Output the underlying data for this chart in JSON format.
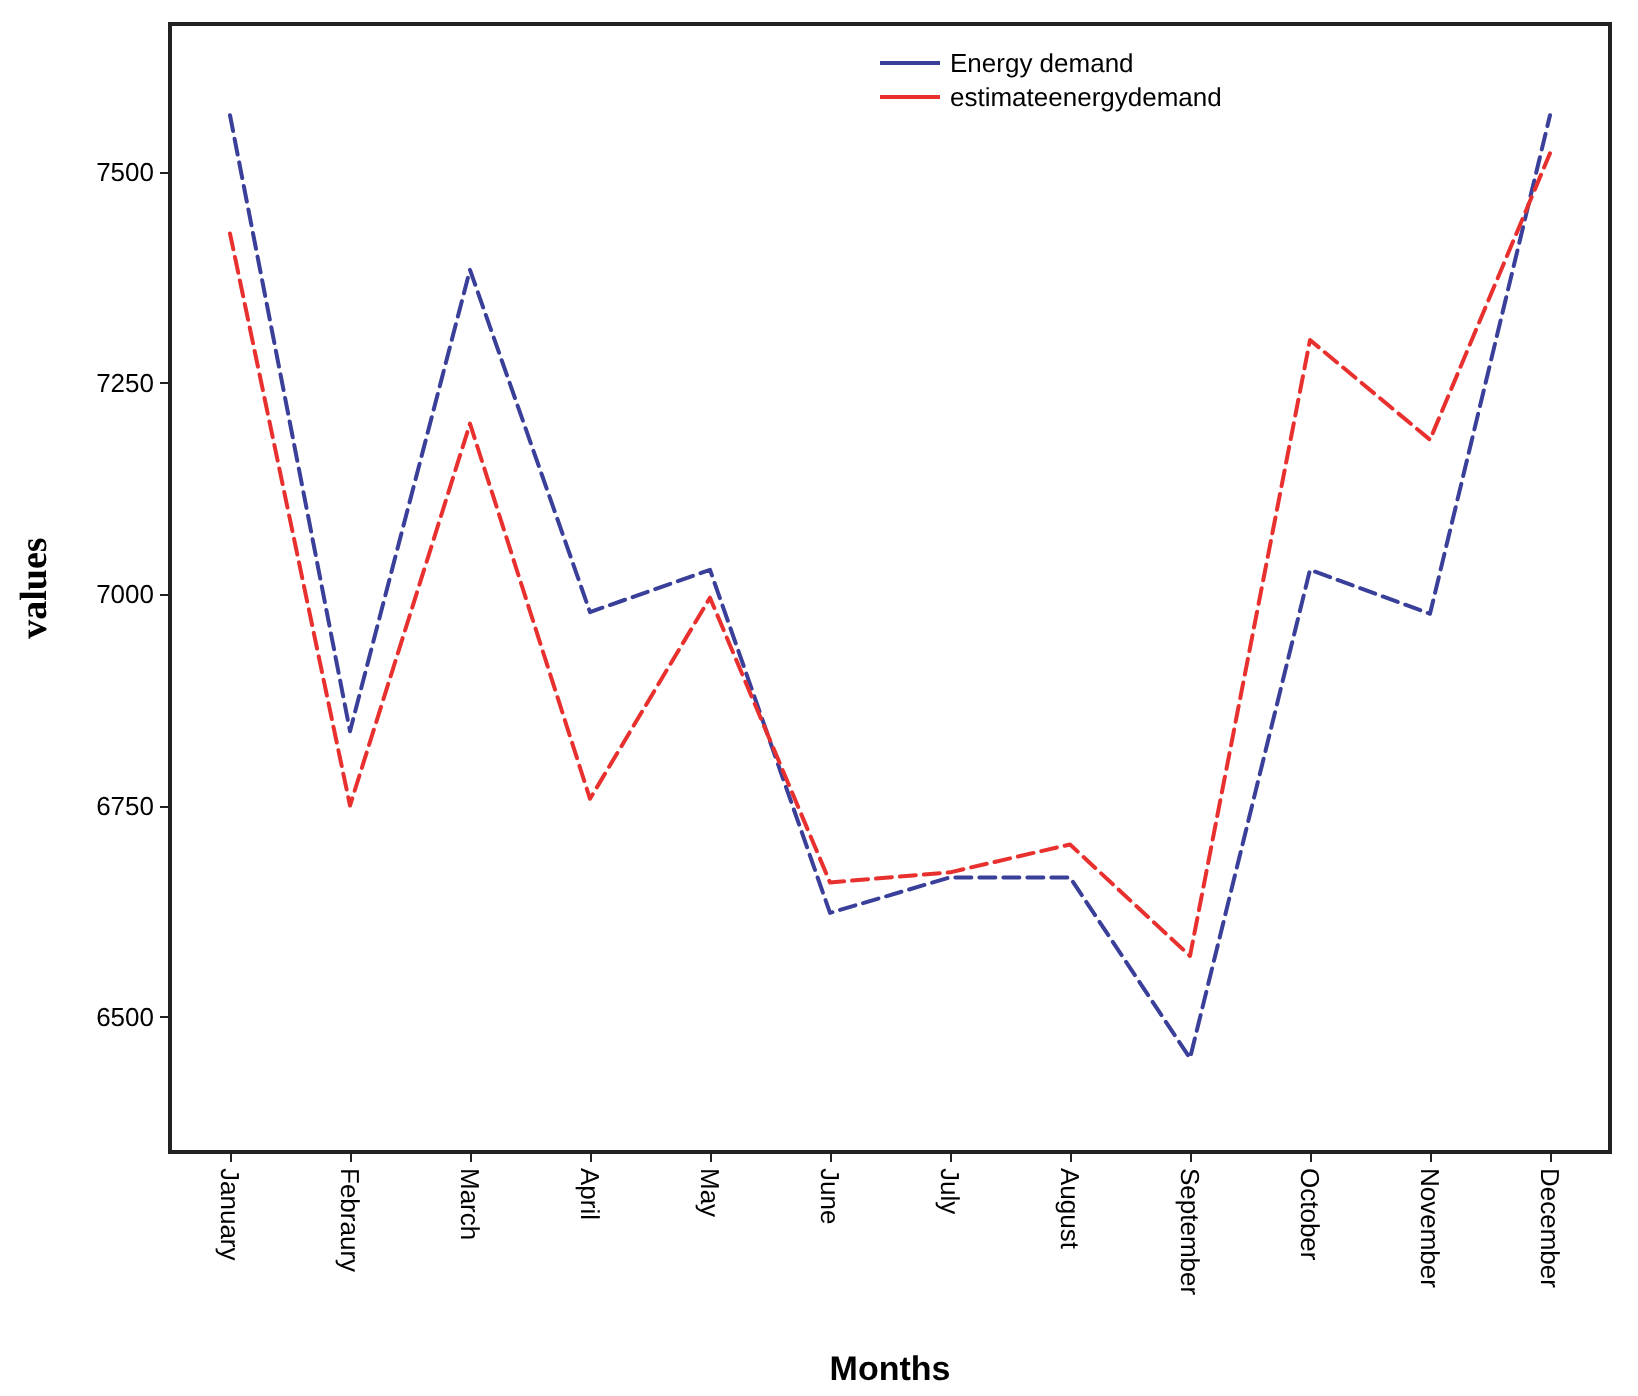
{
  "chart_data": {
    "type": "line",
    "xlabel": "Months",
    "ylabel": "values",
    "categories": [
      "January",
      "Febraury",
      "March",
      "April",
      "May",
      "June",
      "July",
      "August",
      "September",
      "October",
      "November",
      "December"
    ],
    "series": [
      {
        "name": "Energy demand",
        "color": "#3a3f9a",
        "values": [
          7567,
          6838,
          7384,
          6979,
          7029,
          6623,
          6665,
          6665,
          6451,
          7029,
          6977,
          7567
        ]
      },
      {
        "name": "estimateenergydemand",
        "color": "#e8312f",
        "values": [
          7427,
          6750,
          7202,
          6758,
          6996,
          6659,
          6671,
          6704,
          6572,
          7301,
          7183,
          7522
        ]
      }
    ],
    "ylim": [
      6340,
      7675
    ],
    "yticks": [
      6500,
      6750,
      7000,
      7250,
      7500
    ],
    "grid": false,
    "legend": "top right",
    "marker": "none",
    "line_style": "dashed"
  }
}
